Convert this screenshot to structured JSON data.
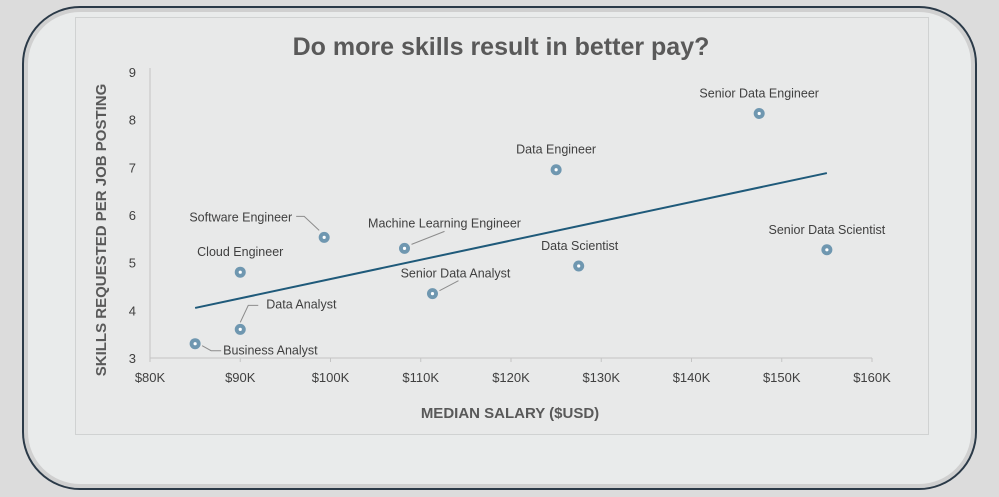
{
  "chart_data": {
    "type": "scatter",
    "title": "Do more skills result in better pay?",
    "xlabel": "MEDIAN SALARY ($USD)",
    "ylabel": "SKILLS REQUESTED PER JOB POSTING",
    "xlim": [
      80000,
      160000
    ],
    "ylim": [
      3,
      9
    ],
    "x_ticks": [
      80000,
      90000,
      100000,
      110000,
      120000,
      130000,
      140000,
      150000,
      160000
    ],
    "x_tick_labels": [
      "$80K",
      "$90K",
      "$100K",
      "$110K",
      "$120K",
      "$130K",
      "$140K",
      "$150K",
      "$160K"
    ],
    "y_ticks": [
      3,
      4,
      5,
      6,
      7,
      8,
      9
    ],
    "y_tick_labels": [
      "3",
      "4",
      "5",
      "6",
      "7",
      "8",
      "9"
    ],
    "grid": false,
    "trendline": {
      "type": "linear",
      "x": [
        85000,
        155000
      ],
      "y": [
        4.05,
        6.88
      ]
    },
    "points": [
      {
        "label": "Business Analyst",
        "x": 85000,
        "y": 3.3
      },
      {
        "label": "Data Analyst",
        "x": 90000,
        "y": 3.6
      },
      {
        "label": "Cloud Engineer",
        "x": 90000,
        "y": 4.8
      },
      {
        "label": "Software Engineer",
        "x": 99300,
        "y": 5.53
      },
      {
        "label": "Machine Learning Engineer",
        "x": 108200,
        "y": 5.3
      },
      {
        "label": "Senior Data Analyst",
        "x": 111300,
        "y": 4.35
      },
      {
        "label": "Data Engineer",
        "x": 125000,
        "y": 6.95
      },
      {
        "label": "Data Scientist",
        "x": 127500,
        "y": 4.93
      },
      {
        "label": "Senior Data Engineer",
        "x": 147500,
        "y": 8.13
      },
      {
        "label": "Senior Data Scientist",
        "x": 155000,
        "y": 5.27
      }
    ],
    "colors": {
      "marker": "#6f97b0",
      "trendline": "#1f5a7a"
    }
  }
}
